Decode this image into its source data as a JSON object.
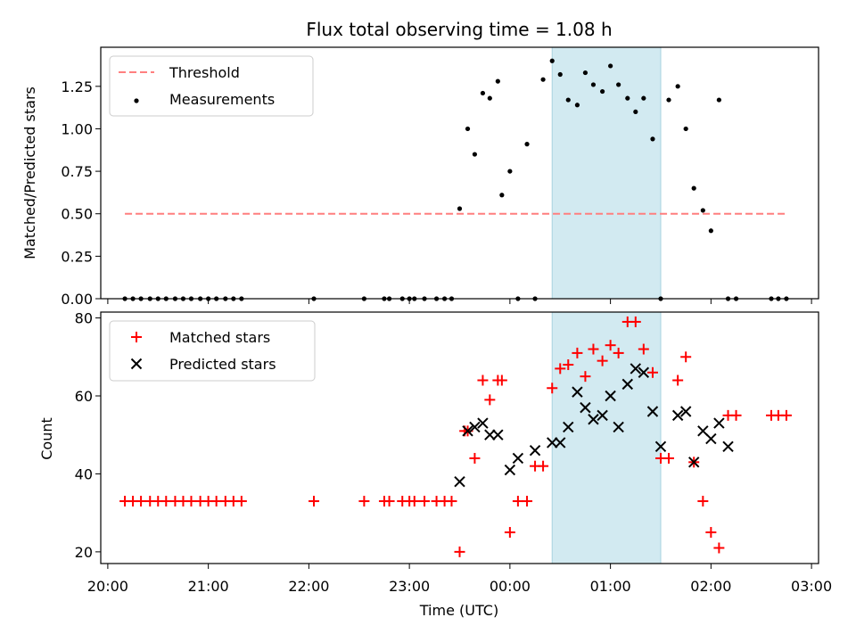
{
  "colors": {
    "threshold": "#ff7f7f",
    "measurement": "#000000",
    "matched": "#ff0000",
    "predicted": "#000000",
    "highlight_fill": "#add8e6",
    "highlight_edge": "#a8d3df"
  },
  "chart_data": [
    {
      "type": "scatter",
      "title": "Flux total observing time = 1.08 h",
      "xlabel": "",
      "ylabel": "Matched/Predicted stars",
      "ylim": [
        0,
        1.48
      ],
      "yticks": [
        0.0,
        0.25,
        0.5,
        0.75,
        1.0,
        1.25
      ],
      "ytick_labels": [
        "0.00",
        "0.25",
        "0.50",
        "0.75",
        "1.00",
        "1.25"
      ],
      "xlim_hours": [
        19.93,
        27.07
      ],
      "xticks_hours": [
        20,
        21,
        22,
        23,
        24,
        25,
        26,
        27
      ],
      "highlight_span_hours": [
        24.42,
        25.5
      ],
      "legend": {
        "placement": "upper-left",
        "entries": [
          "Threshold",
          "Measurements"
        ]
      },
      "threshold": {
        "name": "Threshold",
        "y": 0.5,
        "x_range_hours": [
          20.17,
          26.75
        ]
      },
      "series": [
        {
          "name": "Measurements",
          "x_hours": [
            20.17,
            20.25,
            20.33,
            20.42,
            20.5,
            20.58,
            20.67,
            20.75,
            20.83,
            20.92,
            21.0,
            21.08,
            21.17,
            21.25,
            21.33,
            22.05,
            22.55,
            22.75,
            22.8,
            22.93,
            23.0,
            23.05,
            23.15,
            23.27,
            23.35,
            23.42,
            23.5,
            23.58,
            23.65,
            23.73,
            23.8,
            23.88,
            23.92,
            24.0,
            24.08,
            24.17,
            24.25,
            24.33,
            24.42,
            24.5,
            24.58,
            24.67,
            24.75,
            24.83,
            24.92,
            25.0,
            25.08,
            25.17,
            25.25,
            25.33,
            25.42,
            25.5,
            25.58,
            25.67,
            25.75,
            25.83,
            25.92,
            26.0,
            26.08,
            26.17,
            26.25,
            26.6,
            26.67,
            26.75
          ],
          "y": [
            0,
            0,
            0,
            0,
            0,
            0,
            0,
            0,
            0,
            0,
            0,
            0,
            0,
            0,
            0,
            0,
            0,
            0,
            0,
            0,
            0,
            0,
            0,
            0,
            0,
            0,
            0.53,
            1.0,
            0.85,
            1.21,
            1.18,
            1.28,
            0.61,
            0.75,
            0,
            0.91,
            0,
            1.29,
            1.4,
            1.32,
            1.17,
            1.14,
            1.33,
            1.26,
            1.22,
            1.37,
            1.26,
            1.18,
            1.1,
            1.18,
            0.94,
            0,
            1.17,
            1.25,
            1.0,
            0.65,
            0.52,
            0.4,
            1.17,
            0,
            0,
            0,
            0,
            0
          ]
        }
      ]
    },
    {
      "type": "scatter",
      "title": "",
      "xlabel": "Time (UTC)",
      "ylabel": "Count",
      "ylim": [
        17,
        81.5
      ],
      "yticks": [
        20,
        40,
        60,
        80
      ],
      "ytick_labels": [
        "20",
        "40",
        "60",
        "80"
      ],
      "xlim_hours": [
        19.93,
        27.07
      ],
      "xticks_hours": [
        20,
        21,
        22,
        23,
        24,
        25,
        26,
        27
      ],
      "xtick_labels": [
        "20:00",
        "21:00",
        "22:00",
        "23:00",
        "00:00",
        "01:00",
        "02:00",
        "03:00"
      ],
      "highlight_span_hours": [
        24.42,
        25.5
      ],
      "legend": {
        "placement": "upper-left",
        "entries": [
          "Matched stars",
          "Predicted stars"
        ]
      },
      "series": [
        {
          "name": "Matched stars",
          "x_hours": [
            20.17,
            20.25,
            20.33,
            20.42,
            20.5,
            20.58,
            20.67,
            20.75,
            20.83,
            20.92,
            21.0,
            21.08,
            21.17,
            21.25,
            21.33,
            22.05,
            22.55,
            22.75,
            22.8,
            22.93,
            23.0,
            23.05,
            23.15,
            23.27,
            23.35,
            23.42,
            23.5,
            23.55,
            23.58,
            23.65,
            23.73,
            23.8,
            23.88,
            23.92,
            24.0,
            24.08,
            24.17,
            24.25,
            24.33,
            24.42,
            24.5,
            24.58,
            24.67,
            24.75,
            24.83,
            24.92,
            25.0,
            25.08,
            25.17,
            25.25,
            25.33,
            25.42,
            25.5,
            25.58,
            25.67,
            25.75,
            25.83,
            25.92,
            26.0,
            26.08,
            26.17,
            26.25,
            26.6,
            26.67,
            26.75
          ],
          "y": [
            33,
            33,
            33,
            33,
            33,
            33,
            33,
            33,
            33,
            33,
            33,
            33,
            33,
            33,
            33,
            33,
            33,
            33,
            33,
            33,
            33,
            33,
            33,
            33,
            33,
            33,
            20,
            51,
            51,
            44,
            64,
            59,
            64,
            64,
            25,
            33,
            33,
            42,
            42,
            62,
            67,
            68,
            71,
            65,
            72,
            69,
            73,
            71,
            79,
            79,
            72,
            66,
            44,
            44,
            64,
            70,
            43,
            33,
            25,
            21,
            55,
            55,
            55,
            55,
            55
          ]
        },
        {
          "name": "Predicted stars",
          "x_hours": [
            23.5,
            23.58,
            23.65,
            23.73,
            23.8,
            23.88,
            24.0,
            24.08,
            24.25,
            24.42,
            24.5,
            24.58,
            24.67,
            24.75,
            24.83,
            24.92,
            25.0,
            25.08,
            25.17,
            25.25,
            25.33,
            25.42,
            25.5,
            25.67,
            25.75,
            25.83,
            25.92,
            26.0,
            26.08,
            26.17
          ],
          "y": [
            38,
            51,
            52,
            53,
            50,
            50,
            41,
            44,
            46,
            48,
            48,
            52,
            61,
            57,
            54,
            55,
            60,
            52,
            63,
            67,
            66,
            56,
            47,
            55,
            56,
            43,
            51,
            49,
            53,
            47
          ]
        }
      ]
    }
  ]
}
